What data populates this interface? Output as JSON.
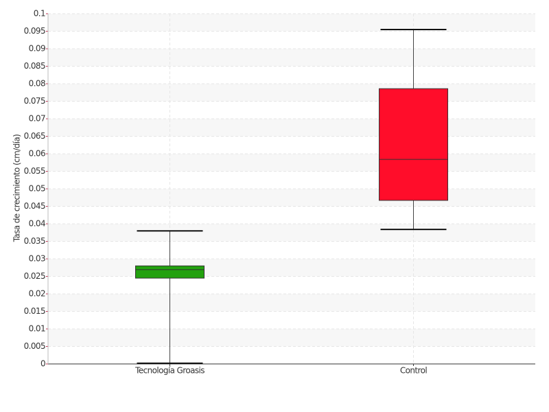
{
  "chart_data": {
    "type": "box",
    "y_label": "Tasa de crecimiento (cm/día)",
    "categories": [
      "Tecnología Groasis",
      "Control"
    ],
    "colors": [
      "#22a10e",
      "#ff0d2a"
    ],
    "boxes": [
      {
        "min": 0.0002,
        "q1": 0.0245,
        "median": 0.0269,
        "q3": 0.028,
        "max": 0.038
      },
      {
        "min": 0.0384,
        "q1": 0.0467,
        "median": 0.0584,
        "q3": 0.0786,
        "max": 0.0955
      }
    ],
    "ylim": [
      0,
      0.1
    ],
    "yticks": [
      0,
      0.005,
      0.01,
      0.015,
      0.02,
      0.025,
      0.03,
      0.035,
      0.04,
      0.045,
      0.05,
      0.055,
      0.06,
      0.065,
      0.07,
      0.075,
      0.08,
      0.085,
      0.09,
      0.095,
      0.1
    ],
    "grid": true
  }
}
